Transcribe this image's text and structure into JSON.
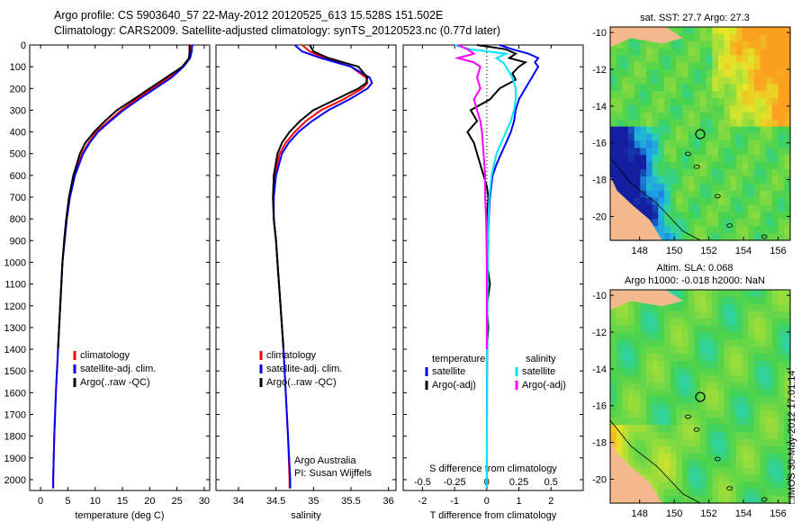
{
  "header": {
    "line1": "Argo profile: CS 5903640_57 22-May-2012 20120525_613 15.528S 151.502E",
    "line2": "Climatology: CARS2009. Satellite-adjusted climatology: synTS_20120523.nc (0.77d later)"
  },
  "colors": {
    "climatology": "#ff0000",
    "satellite": "#0000ff",
    "argo": "#000000",
    "salinity_satellite": "#00e5ff",
    "salinity_argo": "#ff00ff"
  },
  "depth_axis": {
    "min": 0,
    "max": 2050,
    "ticks": [
      0,
      100,
      200,
      300,
      400,
      500,
      600,
      700,
      800,
      900,
      1000,
      1100,
      1200,
      1300,
      1400,
      1500,
      1600,
      1700,
      1800,
      1900,
      2000
    ]
  },
  "chart_data": [
    {
      "type": "line",
      "name": "temperature",
      "xlabel": "temperature (deg C)",
      "xlim": [
        -2,
        31
      ],
      "xticks": [
        0,
        5,
        10,
        15,
        20,
        25,
        30
      ],
      "legend": [
        "climatology",
        "satellite-adj. clim.",
        "Argo(..raw -QC)"
      ],
      "series": [
        {
          "name": "climatology",
          "depth": [
            0,
            30,
            60,
            100,
            150,
            200,
            250,
            300,
            350,
            400,
            450,
            500,
            600,
            700,
            800,
            900,
            1000,
            1200,
            1400,
            1600,
            1800,
            2000,
            2040
          ],
          "values": [
            27.6,
            27.5,
            27.3,
            26.0,
            23.5,
            20.5,
            17.5,
            14.8,
            12.5,
            10.2,
            8.8,
            7.6,
            6.2,
            5.3,
            4.8,
            4.4,
            4.0,
            3.6,
            3.2,
            2.8,
            2.5,
            2.3,
            2.3
          ]
        },
        {
          "name": "satellite-adj. clim.",
          "depth": [
            0,
            30,
            60,
            100,
            150,
            200,
            250,
            300,
            350,
            400,
            450,
            500,
            600,
            700,
            800,
            900,
            1000,
            1200,
            1400,
            1600,
            1800,
            2000,
            2040
          ],
          "values": [
            27.8,
            27.7,
            27.4,
            26.2,
            24.0,
            21.0,
            18.0,
            15.2,
            12.8,
            10.5,
            9.0,
            7.8,
            6.3,
            5.4,
            4.8,
            4.4,
            4.0,
            3.6,
            3.2,
            2.8,
            2.5,
            2.3,
            2.3
          ]
        },
        {
          "name": "Argo(..raw -QC)",
          "depth": [
            0,
            30,
            60,
            100,
            150,
            200,
            250,
            300,
            350,
            400,
            450,
            500,
            600,
            700,
            800,
            900,
            1000,
            1200,
            1400
          ],
          "values": [
            27.3,
            27.3,
            27.2,
            26.0,
            23.0,
            20.0,
            17.0,
            14.0,
            11.8,
            9.8,
            8.2,
            7.2,
            6.0,
            5.2,
            4.7,
            4.3,
            4.0,
            3.6,
            3.2
          ]
        }
      ]
    },
    {
      "type": "line",
      "name": "salinity",
      "xlabel": "salinity",
      "xlim": [
        33.7,
        36.1
      ],
      "xticks": [
        34,
        34.5,
        35,
        35.5,
        36
      ],
      "legend": [
        "climatology",
        "satellite-adj. clim.",
        "Argo(..raw -QC)"
      ],
      "series": [
        {
          "name": "climatology",
          "depth": [
            0,
            30,
            60,
            100,
            150,
            175,
            200,
            250,
            300,
            350,
            400,
            450,
            500,
            600,
            700,
            800,
            900,
            1000,
            1200,
            1400,
            1600,
            1800,
            2000,
            2040
          ],
          "values": [
            34.85,
            34.95,
            35.15,
            35.5,
            35.7,
            35.72,
            35.65,
            35.4,
            35.1,
            34.9,
            34.75,
            34.63,
            34.55,
            34.48,
            34.46,
            34.47,
            34.5,
            34.52,
            34.56,
            34.6,
            34.63,
            34.66,
            34.68,
            34.68
          ]
        },
        {
          "name": "satellite-adj. clim.",
          "depth": [
            0,
            30,
            60,
            100,
            150,
            175,
            200,
            250,
            300,
            350,
            400,
            450,
            500,
            600,
            700,
            800,
            900,
            1000,
            1200,
            1400,
            1600,
            1800,
            2000,
            2040
          ],
          "values": [
            34.75,
            34.85,
            35.1,
            35.5,
            35.75,
            35.78,
            35.72,
            35.48,
            35.2,
            34.98,
            34.8,
            34.67,
            34.58,
            34.5,
            34.47,
            34.47,
            34.5,
            34.52,
            34.56,
            34.6,
            34.63,
            34.66,
            34.69,
            34.69
          ]
        },
        {
          "name": "Argo(..raw -QC)",
          "depth": [
            0,
            30,
            60,
            100,
            150,
            175,
            200,
            250,
            300,
            350,
            400,
            450,
            500,
            600,
            700,
            800,
            900,
            1000,
            1200,
            1400
          ],
          "values": [
            34.95,
            35.0,
            35.2,
            35.6,
            35.72,
            35.7,
            35.6,
            35.3,
            35.0,
            34.82,
            34.68,
            34.58,
            34.52,
            34.47,
            34.46,
            34.47,
            34.5,
            34.52,
            34.56,
            34.6
          ]
        }
      ],
      "note_lines": [
        "Argo Australia",
        "PI: Susan Wijffels"
      ]
    },
    {
      "type": "line",
      "name": "differences",
      "xlabel_bottom": "T difference from climatology",
      "xlabel_top": "S difference from climatology",
      "xlim": [
        -2.6,
        3.0
      ],
      "t_ticks": [
        -2,
        -1,
        0,
        1,
        2
      ],
      "s_ticks_labels": [
        "-0.5",
        "-0.25",
        "0",
        "0.25",
        "0.5"
      ],
      "s_ticks_positions": [
        -2,
        -1,
        0,
        1,
        2
      ],
      "legend_temperature_title": "temperature",
      "legend_salinity_title": "salinity",
      "legend_temperature": [
        "satellite",
        "Argo(-adj)"
      ],
      "legend_salinity": [
        "satellite",
        "Argo(-adj)"
      ],
      "series": [
        {
          "name": "T satellite",
          "depth": [
            0,
            20,
            40,
            60,
            80,
            100,
            150,
            200,
            250,
            300,
            350,
            400,
            450,
            500,
            550,
            600,
            700,
            800,
            900,
            1000,
            1200,
            1500,
            2000,
            2040
          ],
          "values": [
            0.4,
            0.8,
            1.3,
            1.6,
            1.5,
            1.6,
            1.4,
            1.2,
            1.0,
            0.9,
            0.85,
            0.75,
            0.6,
            0.45,
            0.3,
            0.18,
            0.1,
            0.06,
            0.04,
            0.03,
            0.02,
            0.01,
            0.0,
            0.0
          ]
        },
        {
          "name": "T Argo",
          "depth": [
            0,
            20,
            40,
            60,
            80,
            100,
            130,
            160,
            200,
            250,
            300,
            350,
            400,
            450,
            500,
            550,
            600,
            650,
            700,
            800,
            900,
            1000,
            1100,
            1200,
            1300,
            1400
          ],
          "values": [
            -0.3,
            0.6,
            0.9,
            0.7,
            1.2,
            1.0,
            0.8,
            0.9,
            0.4,
            0.1,
            -0.5,
            -0.3,
            -0.6,
            -0.4,
            -0.3,
            -0.2,
            -0.1,
            0.0,
            0.05,
            0.0,
            0.05,
            0.0,
            0.1,
            0.0,
            0.05,
            0.0
          ]
        },
        {
          "name": "S satellite",
          "depth": [
            0,
            20,
            40,
            60,
            80,
            100,
            150,
            200,
            250,
            300,
            350,
            400,
            450,
            500,
            600,
            700,
            800,
            1000,
            1200,
            1500,
            2000,
            2040
          ],
          "values": [
            -1.0,
            -0.5,
            0.6,
            0.3,
            0.5,
            0.6,
            0.8,
            0.9,
            0.9,
            0.85,
            0.75,
            0.6,
            0.45,
            0.3,
            0.15,
            0.08,
            0.05,
            0.03,
            0.02,
            0.01,
            0.0,
            0.0
          ]
        },
        {
          "name": "S Argo",
          "depth": [
            0,
            20,
            40,
            60,
            80,
            100,
            150,
            200,
            250,
            300,
            350,
            400,
            500,
            600,
            700,
            800,
            1000,
            1200,
            1400
          ],
          "values": [
            -0.9,
            -0.6,
            -0.4,
            -0.9,
            -0.4,
            -0.2,
            -0.3,
            -0.2,
            -0.4,
            -0.3,
            -0.2,
            -0.15,
            -0.1,
            -0.05,
            -0.05,
            -0.02,
            0.0,
            0.0,
            0.0
          ]
        }
      ]
    },
    {
      "type": "heatmap",
      "name": "sst_map",
      "caption": "sat. SST: 27.7  Argo: 27.3",
      "lon_range": [
        146.3,
        156.7
      ],
      "lat_range": [
        -21.3,
        -9.7
      ],
      "xticks": [
        148,
        150,
        152,
        154,
        156
      ],
      "yticks": [
        -10,
        -12,
        -14,
        -16,
        -18,
        -20
      ],
      "marker": {
        "lon": 151.502,
        "lat": -15.528
      }
    },
    {
      "type": "heatmap",
      "name": "sla_map",
      "caption_line1": "Altim. SLA: 0.068",
      "caption_line2": "Argo h1000: -0.018  h2000: NaN",
      "lon_range": [
        146.3,
        156.7
      ],
      "lat_range": [
        -21.3,
        -9.7
      ],
      "xticks": [
        148,
        150,
        152,
        154,
        156
      ],
      "yticks": [
        -10,
        -12,
        -14,
        -16,
        -18,
        -20
      ],
      "marker": {
        "lon": 151.502,
        "lat": -15.528
      }
    }
  ],
  "stamp": "□IMOS 30-May-2012 17:01:14"
}
